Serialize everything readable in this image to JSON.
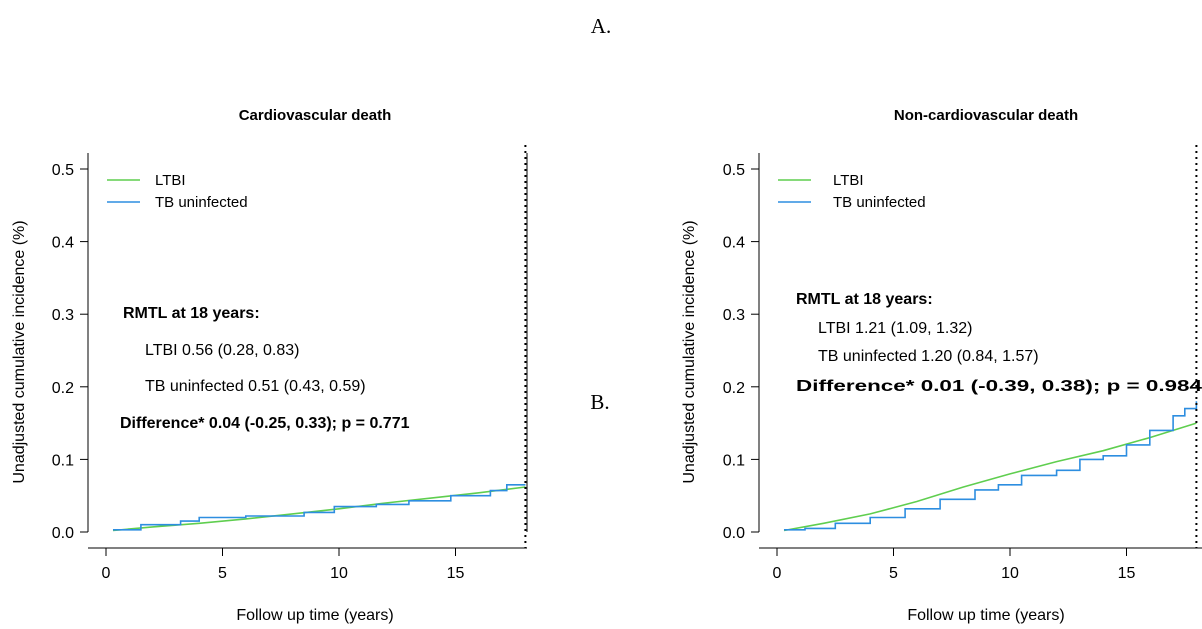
{
  "figure": {
    "label_a": "A.",
    "label_b": "B."
  },
  "chart_data": [
    {
      "type": "line",
      "title": "Cardiovascular death",
      "xlabel": "Follow up time (years)",
      "ylabel": "Unadjusted cumulative incidence (%)",
      "xlim": [
        0,
        18
      ],
      "ylim": [
        0,
        0.5
      ],
      "x_ticks": [
        "0",
        "5",
        "10",
        "15"
      ],
      "y_ticks": [
        "0.0",
        "0.1",
        "0.2",
        "0.3",
        "0.4",
        "0.5"
      ],
      "legend": {
        "position": "top-left",
        "entries": [
          "LTBI",
          "TB uninfected"
        ]
      },
      "reference_line": {
        "x": 18,
        "style": "dotted"
      },
      "series": [
        {
          "name": "LTBI",
          "color": "#5fce4f",
          "step": false,
          "x": [
            0.3,
            2,
            4,
            6,
            8,
            10,
            12,
            14,
            16,
            18
          ],
          "y": [
            0.002,
            0.007,
            0.012,
            0.018,
            0.025,
            0.032,
            0.04,
            0.047,
            0.054,
            0.062
          ]
        },
        {
          "name": "TB uninfected",
          "color": "#2d8ee0",
          "step": true,
          "x": [
            0.3,
            1.5,
            3.2,
            4,
            6,
            8.5,
            9.8,
            11.6,
            13,
            14.8,
            16.5,
            17.2,
            18
          ],
          "y": [
            0.003,
            0.01,
            0.015,
            0.02,
            0.022,
            0.027,
            0.035,
            0.038,
            0.043,
            0.05,
            0.057,
            0.065,
            0.065
          ]
        }
      ],
      "annotation": {
        "heading": "RMTL at 18 years:",
        "lines": [
          "LTBI 0.56 (0.28, 0.83)",
          "TB uninfected 0.51 (0.43, 0.59)"
        ],
        "difference": "Difference* 0.04 (-0.25, 0.33); p = 0.771"
      }
    },
    {
      "type": "line",
      "title": "Non-cardiovascular death",
      "xlabel": "Follow up time (years)",
      "ylabel": "Unadjusted cumulative incidence (%)",
      "xlim": [
        0,
        18
      ],
      "ylim": [
        0,
        0.5
      ],
      "x_ticks": [
        "0",
        "5",
        "10",
        "15"
      ],
      "y_ticks": [
        "0.0",
        "0.1",
        "0.2",
        "0.3",
        "0.4",
        "0.5"
      ],
      "legend": {
        "position": "top-left",
        "entries": [
          "LTBI",
          "TB uninfected"
        ]
      },
      "reference_line": {
        "x": 18,
        "style": "dotted"
      },
      "series": [
        {
          "name": "LTBI",
          "color": "#5fce4f",
          "step": false,
          "x": [
            0.3,
            2,
            4,
            6,
            8,
            10,
            12,
            14,
            16,
            18
          ],
          "y": [
            0.002,
            0.012,
            0.025,
            0.042,
            0.062,
            0.08,
            0.097,
            0.112,
            0.13,
            0.15
          ]
        },
        {
          "name": "TB uninfected",
          "color": "#2d8ee0",
          "step": true,
          "x": [
            0.3,
            1.2,
            2.5,
            4,
            5.5,
            7,
            8.5,
            9.5,
            10.5,
            12,
            13,
            14,
            15,
            16,
            17,
            17.5,
            18
          ],
          "y": [
            0.003,
            0.005,
            0.012,
            0.02,
            0.032,
            0.045,
            0.058,
            0.065,
            0.078,
            0.085,
            0.1,
            0.105,
            0.12,
            0.14,
            0.16,
            0.17,
            0.18
          ]
        }
      ],
      "annotation": {
        "heading": "RMTL at 18 years:",
        "lines": [
          "LTBI 1.21 (1.09, 1.32)",
          "TB uninfected 1.20 (0.84, 1.57)"
        ],
        "difference": "Difference* 0.01 (-0.39, 0.38); p = 0.984"
      }
    }
  ]
}
